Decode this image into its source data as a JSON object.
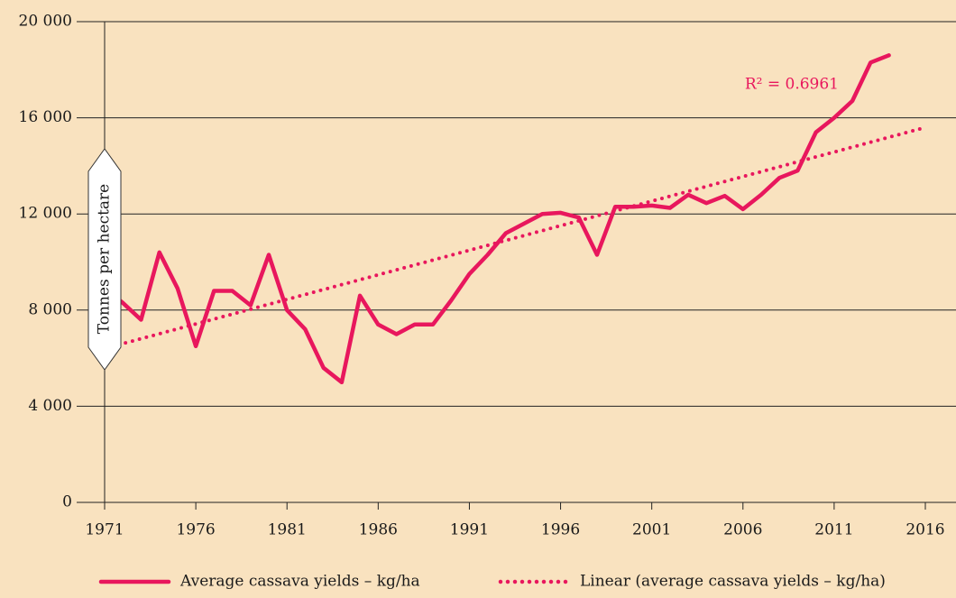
{
  "chart_data": {
    "type": "line",
    "y_label": "Tonnes per hectare",
    "annotation": "R² = 0.6961",
    "xlim": [
      1971,
      2016
    ],
    "xticks": [
      1971,
      1976,
      1981,
      1986,
      1991,
      1996,
      2001,
      2006,
      2011,
      2016
    ],
    "ylim": [
      0,
      20000
    ],
    "yticks": [
      0,
      {
        "value": 4000,
        "label": "4 000"
      },
      {
        "value": 8000,
        "label": "8 000"
      },
      {
        "value": 12000,
        "label": "12 000"
      },
      {
        "value": 16000,
        "label": "16 000"
      },
      {
        "value": 20000,
        "label": "20 000"
      }
    ],
    "grid": true,
    "series": [
      {
        "name": "Average cassava yields – kg/ha",
        "color": "#e8175d",
        "style": "solid",
        "x": [
          1971,
          1972,
          1973,
          1974,
          1975,
          1976,
          1977,
          1978,
          1979,
          1980,
          1981,
          1982,
          1983,
          1984,
          1985,
          1986,
          1987,
          1988,
          1989,
          1990,
          1991,
          1992,
          1993,
          1994,
          1995,
          1996,
          1997,
          1998,
          1999,
          2000,
          2001,
          2002,
          2003,
          2004,
          2005,
          2006,
          2007,
          2008,
          2009,
          2010,
          2011,
          2012,
          2013,
          2014
        ],
        "values": [
          8900,
          8300,
          7600,
          10400,
          8900,
          6500,
          8800,
          8800,
          8200,
          10300,
          8000,
          7200,
          5600,
          5000,
          8600,
          7400,
          7000,
          7400,
          7400,
          8400,
          9500,
          10300,
          11200,
          11600,
          12000,
          12050,
          11850,
          10300,
          12300,
          12300,
          12350,
          12250,
          12800,
          12450,
          12750,
          12200,
          12800,
          13500,
          13800,
          15400,
          16000,
          16700,
          18300,
          18600
        ]
      },
      {
        "name": "Linear (average cassava yields – kg/ha)",
        "color": "#e8175d",
        "style": "dotted",
        "x": [
          1971,
          2016
        ],
        "values": [
          6400,
          15600
        ]
      }
    ]
  }
}
